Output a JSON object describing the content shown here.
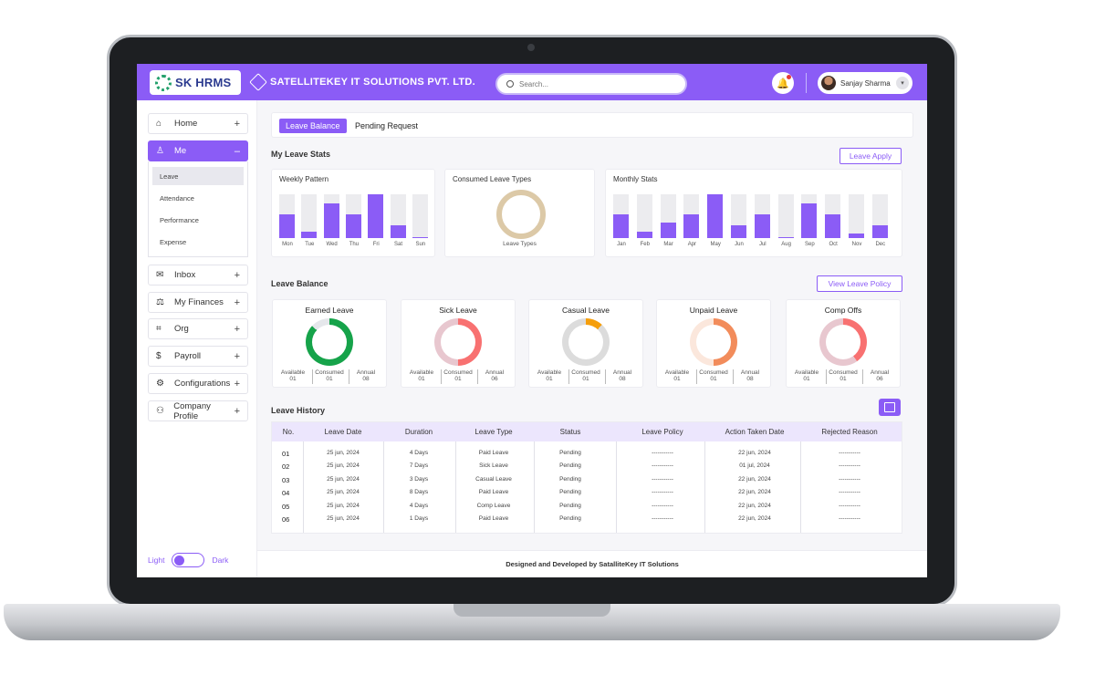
{
  "header": {
    "logo_text": "SK HRMS",
    "company_name": "SATELLITEKEY IT SOLUTIONS PVT. LTD.",
    "search_placeholder": "Search...",
    "user_name": "Sanjay Sharma"
  },
  "sidebar": {
    "items": [
      {
        "label": "Home",
        "icon": "home-icon",
        "expander": "+"
      },
      {
        "label": "Me",
        "icon": "user-icon",
        "expander": "–"
      },
      {
        "label": "Inbox",
        "icon": "inbox-icon",
        "expander": "+"
      },
      {
        "label": "My Finances",
        "icon": "finances-icon",
        "expander": "+"
      },
      {
        "label": "Org",
        "icon": "org-icon",
        "expander": "+"
      },
      {
        "label": "Payroll",
        "icon": "payroll-icon",
        "expander": "+"
      },
      {
        "label": "Configurations",
        "icon": "gear-icon",
        "expander": "+"
      },
      {
        "label": "Company Profile",
        "icon": "company-icon",
        "expander": "+"
      }
    ],
    "submenu": [
      "Leave",
      "Attendance",
      "Performance",
      "Expense"
    ],
    "theme": {
      "light": "Light",
      "dark": "Dark"
    }
  },
  "tabs": [
    "Leave Balance",
    "Pending Request"
  ],
  "stats": {
    "title": "My Leave Stats",
    "apply_button": "Leave Apply",
    "weekly": {
      "title": "Weekly Pattern",
      "days": [
        "Mon",
        "Tue",
        "Wed",
        "Thu",
        "Fri",
        "Sat",
        "Sun"
      ],
      "fills": [
        0.55,
        0.15,
        0.8,
        0.55,
        1.0,
        0.3,
        0.03
      ]
    },
    "consumed": {
      "title": "Consumed Leave Types",
      "label": "Leave Types"
    },
    "monthly": {
      "title": "Monthly Stats",
      "months": [
        "Jan",
        "Feb",
        "Mar",
        "Apr",
        "May",
        "Jun",
        "Jul",
        "Aug",
        "Sep",
        "Oct",
        "Nov",
        "Dec"
      ],
      "fills": [
        0.55,
        0.15,
        0.35,
        0.55,
        1.0,
        0.3,
        0.55,
        0.03,
        0.8,
        0.55,
        0.1,
        0.3
      ]
    }
  },
  "balance": {
    "title": "Leave Balance",
    "policy_button": "View Leave Policy",
    "stat_labels": [
      "Available",
      "Consumed",
      "Annual"
    ],
    "cards": [
      {
        "title": "Earned Leave",
        "available": "01",
        "consumed": "01",
        "annual": "08",
        "color": "#16a34a",
        "track": "#e5e7eb",
        "fraction": 0.87
      },
      {
        "title": "Sick Leave",
        "available": "01",
        "consumed": "01",
        "annual": "06",
        "color": "#f87171",
        "track": "#e8c7cf",
        "fraction": 0.5
      },
      {
        "title": "Casual Leave",
        "available": "01",
        "consumed": "01",
        "annual": "08",
        "color": "#f59e0b",
        "track": "#dcdcdc",
        "fraction": 0.12
      },
      {
        "title": "Unpaid Leave",
        "available": "01",
        "consumed": "01",
        "annual": "08",
        "color": "#f28c5b",
        "track": "#fbe7dc",
        "fraction": 0.5
      },
      {
        "title": "Comp Offs",
        "available": "01",
        "consumed": "01",
        "annual": "06",
        "color": "#f87171",
        "track": "#e8c7cf",
        "fraction": 0.4
      }
    ]
  },
  "history": {
    "title": "Leave History",
    "columns": [
      "No.",
      "Leave Date",
      "Duration",
      "Leave Type",
      "Status",
      "Leave Policy",
      "Action Taken Date",
      "Rejected Reason"
    ],
    "rows": [
      [
        "01",
        "25 jun, 2024",
        "4 Days",
        "Paid Leave",
        "Pending",
        "-----------",
        "22 jun, 2024",
        "-----------"
      ],
      [
        "02",
        "25 jun, 2024",
        "7 Days",
        "Sick Leave",
        "Pending",
        "-----------",
        "01 jul, 2024",
        "-----------"
      ],
      [
        "03",
        "25 jun, 2024",
        "3 Days",
        "Casual Leave",
        "Pending",
        "-----------",
        "22 jun, 2024",
        "-----------"
      ],
      [
        "04",
        "25 jun, 2024",
        "8 Days",
        "Paid Leave",
        "Pending",
        "-----------",
        "22 jun, 2024",
        "-----------"
      ],
      [
        "05",
        "25 jun, 2024",
        "4 Days",
        "Comp Leave",
        "Pending",
        "-----------",
        "22 jun, 2024",
        "-----------"
      ],
      [
        "06",
        "25 jun, 2024",
        "1 Days",
        "Paid Leave",
        "Pending",
        "-----------",
        "22 jun, 2024",
        "-----------"
      ]
    ]
  },
  "footer": "Designed and Developed by SatalliteKey IT Solutions"
}
